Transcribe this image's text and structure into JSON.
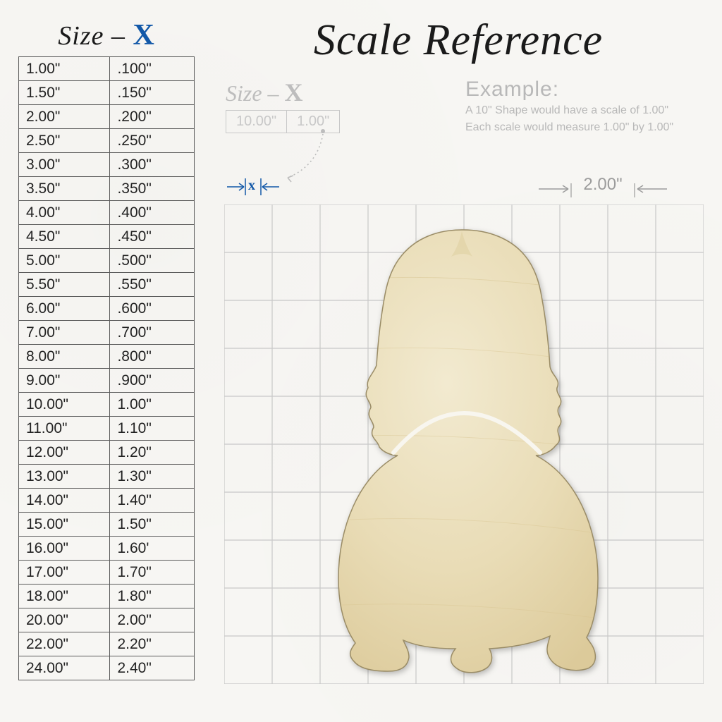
{
  "title": "Scale Reference",
  "size_header": {
    "prefix": "Size –",
    "x": "X"
  },
  "size_table": {
    "rows": [
      [
        "1.00\"",
        ".100\""
      ],
      [
        "1.50\"",
        ".150\""
      ],
      [
        "2.00\"",
        ".200\""
      ],
      [
        "2.50\"",
        ".250\""
      ],
      [
        "3.00\"",
        ".300\""
      ],
      [
        "3.50\"",
        ".350\""
      ],
      [
        "4.00\"",
        ".400\""
      ],
      [
        "4.50\"",
        ".450\""
      ],
      [
        "5.00\"",
        ".500\""
      ],
      [
        "5.50\"",
        ".550\""
      ],
      [
        "6.00\"",
        ".600\""
      ],
      [
        "7.00\"",
        ".700\""
      ],
      [
        "8.00\"",
        ".800\""
      ],
      [
        "9.00\"",
        ".900\""
      ],
      [
        "10.00\"",
        "1.00\""
      ],
      [
        "11.00\"",
        "1.10\""
      ],
      [
        "12.00\"",
        "1.20\""
      ],
      [
        "13.00\"",
        "1.30\""
      ],
      [
        "14.00\"",
        "1.40\""
      ],
      [
        "15.00\"",
        "1.50\""
      ],
      [
        "16.00\"",
        "1.60'"
      ],
      [
        "17.00\"",
        "1.70\""
      ],
      [
        "18.00\"",
        "1.80\""
      ],
      [
        "20.00\"",
        "2.00\""
      ],
      [
        "22.00\"",
        "2.20\""
      ],
      [
        "24.00\"",
        "2.40\""
      ]
    ],
    "border_color": "#5a5a5a",
    "font_size": 21,
    "text_color": "#222222"
  },
  "sub_header": {
    "prefix": "Size –",
    "x": "X",
    "color": "#bdbdbd"
  },
  "mini_table": {
    "cells": [
      "10.00\"",
      "1.00\""
    ],
    "border_color": "#c8c8c8",
    "text_color": "#c8c8c8"
  },
  "example": {
    "heading": "Example:",
    "line1": "A 10\" Shape would have a scale of 1.00\"",
    "line2": "Each scale would measure 1.00\" by 1.00\"",
    "text_color": "#b8b8b8"
  },
  "x_indicator": {
    "label": "x",
    "color": "#1258a8"
  },
  "scale2": {
    "label": "2.00\"",
    "color": "#9c9c9c"
  },
  "grid": {
    "cols": 10,
    "rows": 10,
    "cell": 68,
    "line_color": "#c8c8c8",
    "line_width": 1.2
  },
  "shape": {
    "fill_base": "#e9dcb6",
    "fill_light": "#f2ead0",
    "fill_dark": "#dcca9a",
    "stroke": "#8f8260",
    "inner_stroke": "#f8f6ef"
  },
  "colors": {
    "background": "#f7f6f3",
    "accent_blue": "#1258a8",
    "title_color": "#1a1a1a"
  }
}
